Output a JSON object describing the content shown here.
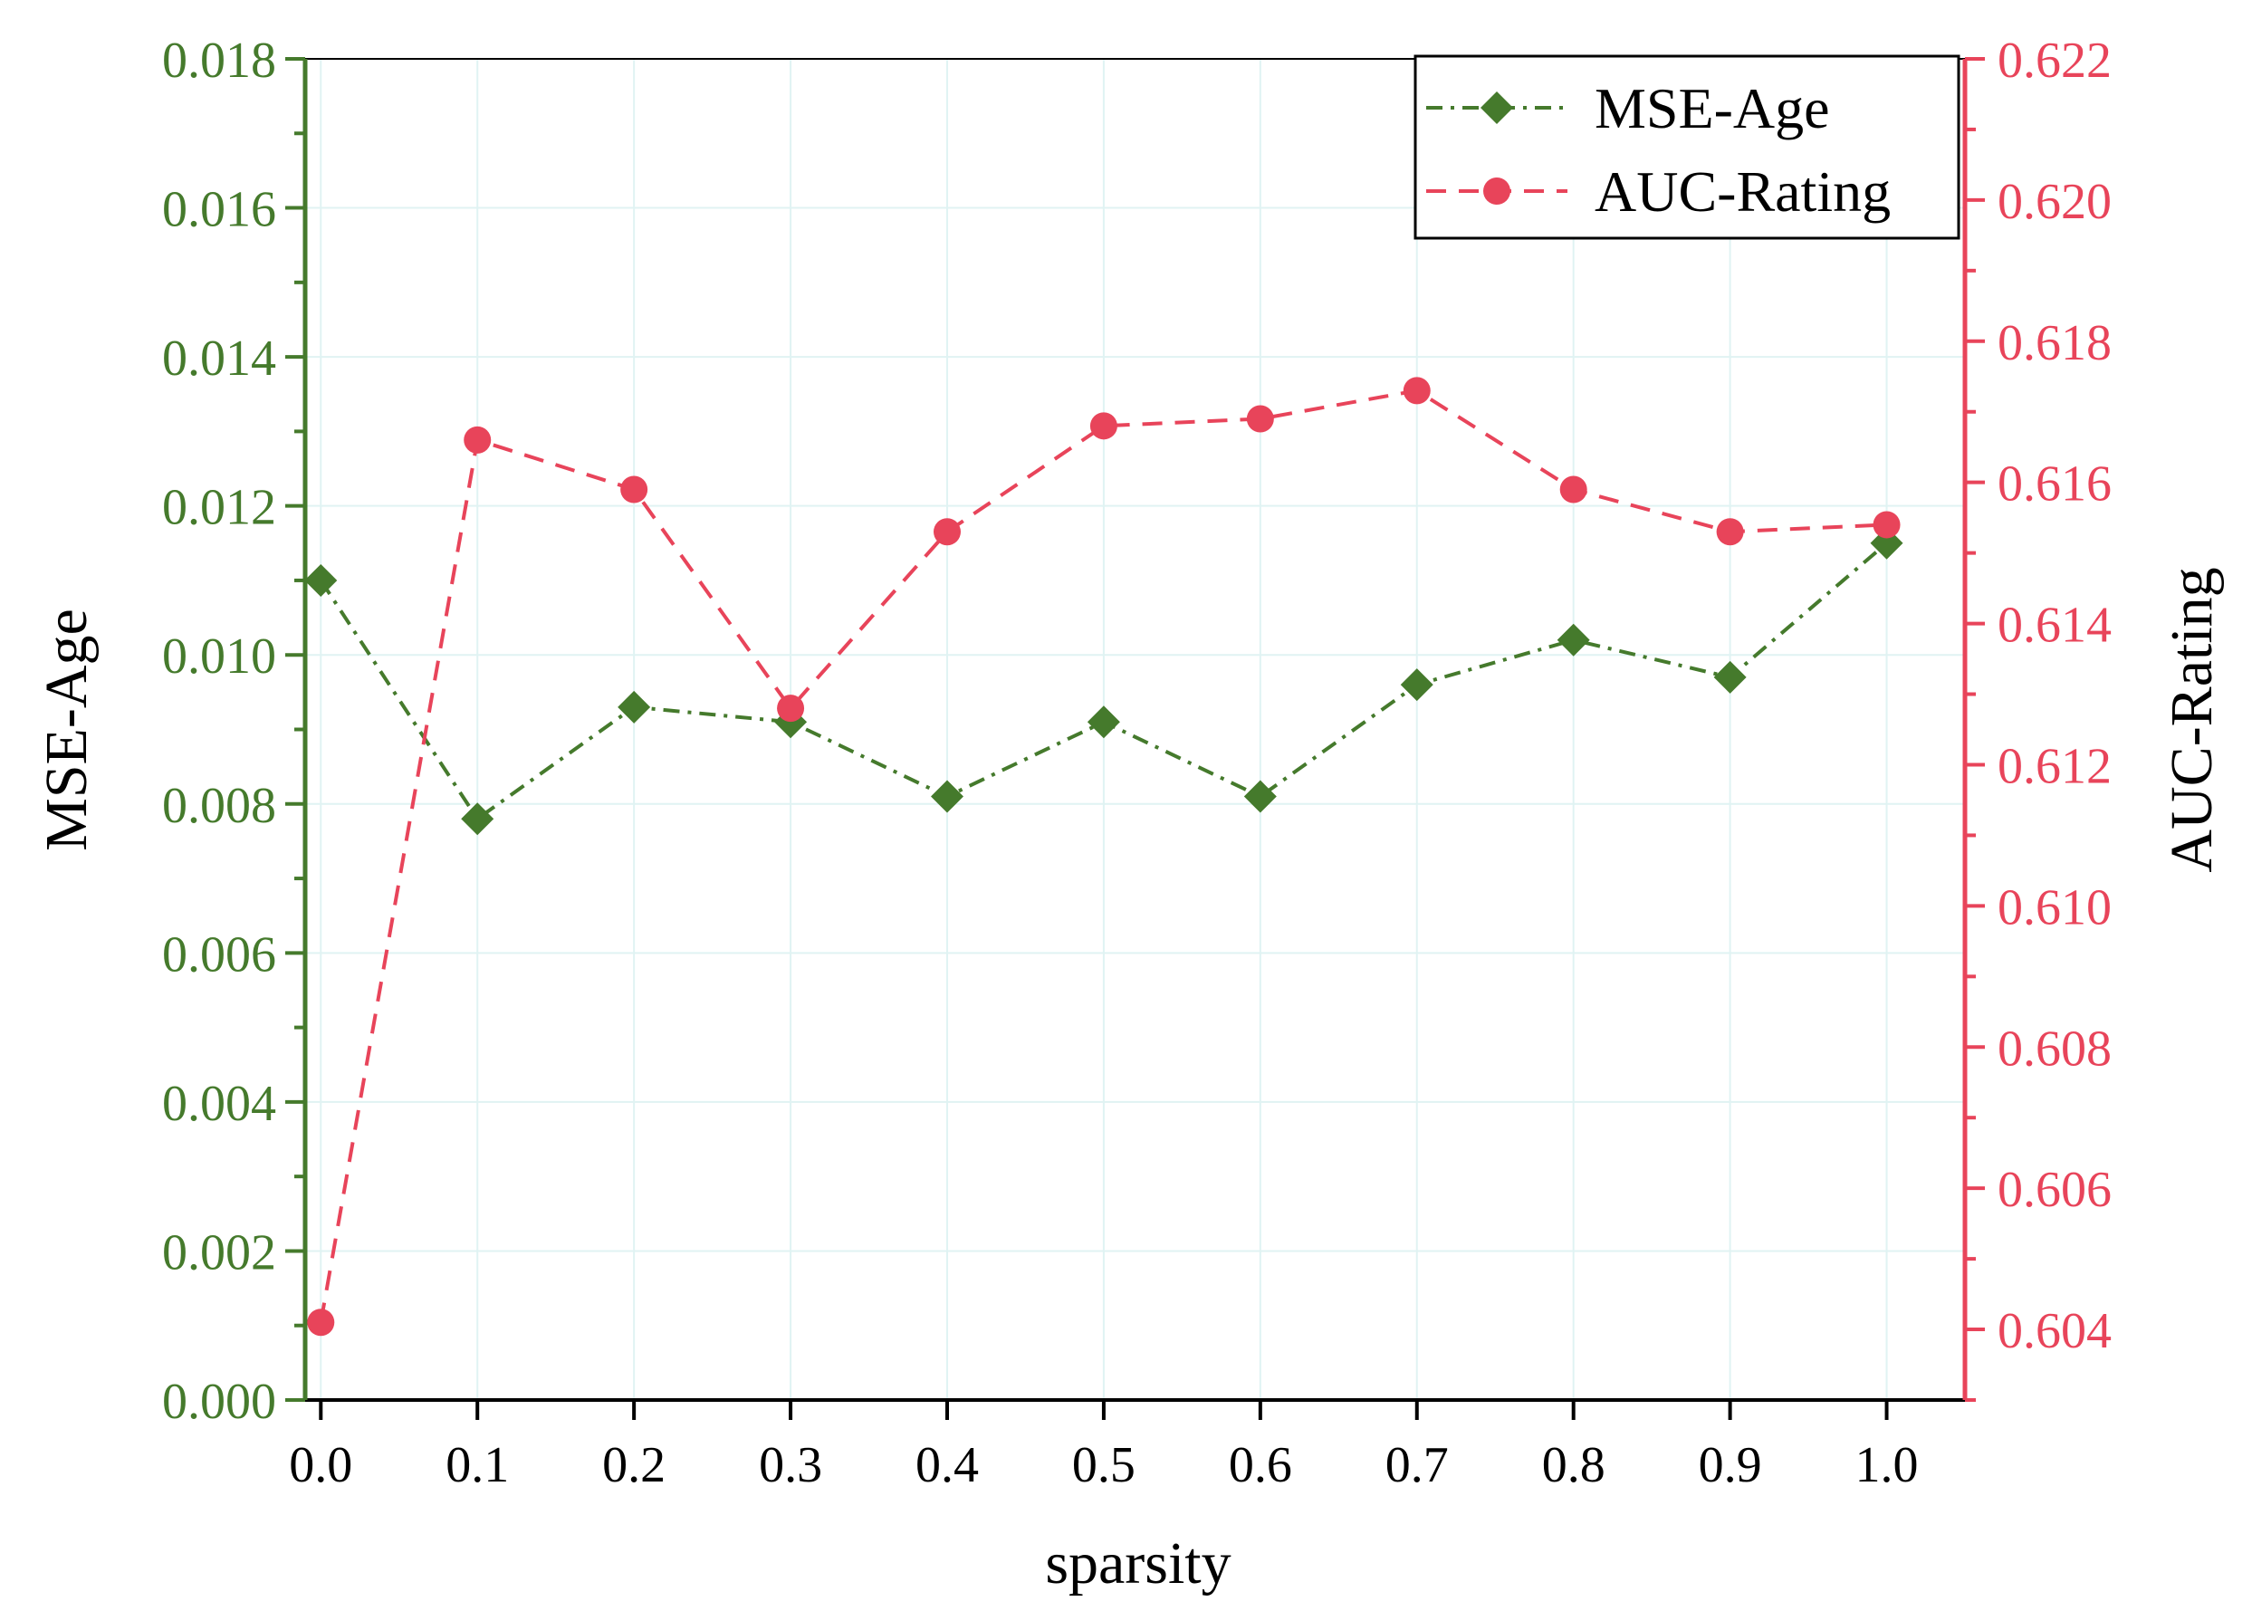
{
  "chart_data": {
    "type": "line",
    "xlabel": "sparsity",
    "x": [
      0.0,
      0.1,
      0.2,
      0.3,
      0.4,
      0.5,
      0.6,
      0.7,
      0.8,
      0.9,
      1.0
    ],
    "x_tick_labels": [
      "0.0",
      "0.1",
      "0.2",
      "0.3",
      "0.4",
      "0.5",
      "0.6",
      "0.7",
      "0.8",
      "0.9",
      "1.0"
    ],
    "xlim": [
      -0.01,
      1.05
    ],
    "y_left": {
      "label": "MSE-Age",
      "lim": [
        0.0,
        0.018
      ],
      "ticks": [
        "0.000",
        "0.002",
        "0.004",
        "0.006",
        "0.008",
        "0.010",
        "0.012",
        "0.014",
        "0.016",
        "0.018"
      ],
      "color": "#457a2c"
    },
    "y_right": {
      "label": "AUC-Rating",
      "lim": [
        0.603,
        0.622
      ],
      "ticks": [
        "0.604",
        "0.606",
        "0.608",
        "0.610",
        "0.612",
        "0.614",
        "0.616",
        "0.618",
        "0.620",
        "0.622"
      ],
      "color": "#e8445a"
    },
    "series": [
      {
        "name": "MSE-Age",
        "axis": "left",
        "marker": "diamond",
        "line_style": "dash-dot",
        "color": "#457a2c",
        "values": [
          0.011,
          0.0078,
          0.0093,
          0.0091,
          0.0081,
          0.0091,
          0.0081,
          0.0096,
          0.0102,
          0.0097,
          0.0115
        ]
      },
      {
        "name": "AUC-Rating",
        "axis": "right",
        "marker": "circle",
        "line_style": "dashed",
        "color": "#e8445a",
        "values": [
          0.6041,
          0.6166,
          0.6159,
          0.6128,
          0.6153,
          0.6168,
          0.6169,
          0.6173,
          0.6159,
          0.6153,
          0.6154
        ]
      }
    ],
    "legend": {
      "position": "top-right",
      "entries": [
        "MSE-Age",
        "AUC-Rating"
      ]
    },
    "grid": true,
    "grid_color": "#e0f3f3"
  }
}
